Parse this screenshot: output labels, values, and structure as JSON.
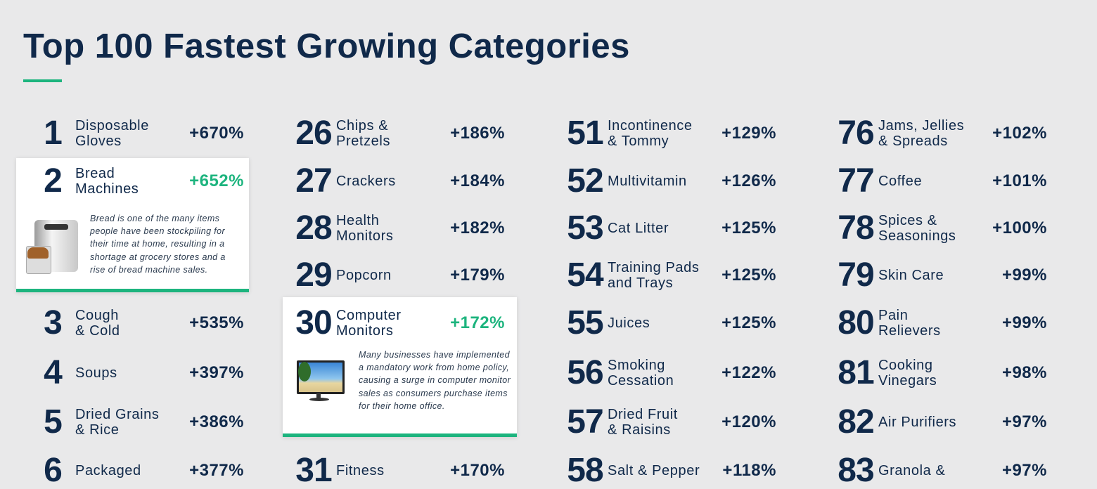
{
  "title": "Top 100 Fastest Growing Categories",
  "colors": {
    "navy": "#10294a",
    "accent_green": "#1db47e",
    "background": "#e9e9ea"
  },
  "columns": [
    [
      {
        "rank": "1",
        "label": "Disposable\nGloves",
        "pct": "+670%"
      },
      {
        "rank": "2",
        "label": "Bread\nMachines",
        "pct": "+652%",
        "highlight": true,
        "description": "Bread is one of the many items people have been stockpiling for their time at home, resulting in a shortage at grocery stores and a rise of bread machine sales.",
        "image_icon": "bread-machine-icon"
      },
      {
        "rank": "3",
        "label": "Cough\n& Cold",
        "pct": "+535%"
      },
      {
        "rank": "4",
        "label": "Soups",
        "pct": "+397%"
      },
      {
        "rank": "5",
        "label": "Dried Grains\n& Rice",
        "pct": "+386%"
      },
      {
        "rank": "6",
        "label": "Packaged",
        "pct": "+377%"
      }
    ],
    [
      {
        "rank": "26",
        "label": "Chips &\nPretzels",
        "pct": "+186%"
      },
      {
        "rank": "27",
        "label": "Crackers",
        "pct": "+184%"
      },
      {
        "rank": "28",
        "label": "Health\nMonitors",
        "pct": "+182%"
      },
      {
        "rank": "29",
        "label": "Popcorn",
        "pct": "+179%"
      },
      {
        "rank": "30",
        "label": "Computer\nMonitors",
        "pct": "+172%",
        "highlight": true,
        "description": "Many businesses have implemented a mandatory work from home policy, causing a surge in computer monitor sales as consumers purchase items for their home office.",
        "image_icon": "computer-monitor-icon"
      },
      {
        "rank": "31",
        "label": "Fitness",
        "pct": "+170%"
      }
    ],
    [
      {
        "rank": "51",
        "label": "Incontinence\n& Tommy",
        "pct": "+129%"
      },
      {
        "rank": "52",
        "label": "Multivitamin",
        "pct": "+126%"
      },
      {
        "rank": "53",
        "label": "Cat Litter",
        "pct": "+125%"
      },
      {
        "rank": "54",
        "label": "Training Pads\nand Trays",
        "pct": "+125%"
      },
      {
        "rank": "55",
        "label": "Juices",
        "pct": "+125%"
      },
      {
        "rank": "56",
        "label": "Smoking\nCessation",
        "pct": "+122%"
      },
      {
        "rank": "57",
        "label": "Dried Fruit\n& Raisins",
        "pct": "+120%"
      },
      {
        "rank": "58",
        "label": "Salt & Pepper",
        "pct": "+118%"
      }
    ],
    [
      {
        "rank": "76",
        "label": "Jams, Jellies\n& Spreads",
        "pct": "+102%"
      },
      {
        "rank": "77",
        "label": "Coffee",
        "pct": "+101%"
      },
      {
        "rank": "78",
        "label": "Spices &\nSeasonings",
        "pct": "+100%"
      },
      {
        "rank": "79",
        "label": "Skin Care",
        "pct": "+99%"
      },
      {
        "rank": "80",
        "label": "Pain\nRelievers",
        "pct": "+99%"
      },
      {
        "rank": "81",
        "label": "Cooking\nVinegars",
        "pct": "+98%"
      },
      {
        "rank": "82",
        "label": "Air Purifiers",
        "pct": "+97%"
      },
      {
        "rank": "83",
        "label": "Granola &",
        "pct": "+97%"
      }
    ]
  ]
}
